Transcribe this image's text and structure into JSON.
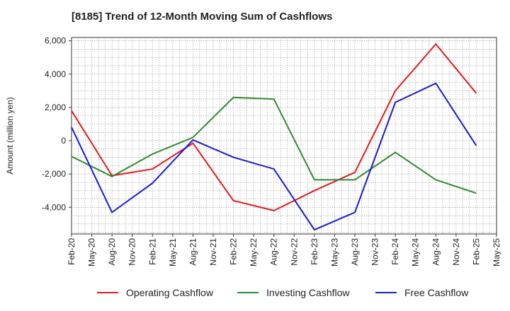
{
  "title": "[8185]  Trend of 12-Month Moving Sum of Cashflows",
  "chart_data": {
    "type": "line",
    "title": "[8185]  Trend of 12-Month Moving Sum of Cashflows",
    "xlabel": "",
    "ylabel": "Amount (million yen)",
    "x": [
      "Feb-20",
      "May-20",
      "Aug-20",
      "Nov-20",
      "Feb-21",
      "May-21",
      "Aug-21",
      "Nov-21",
      "Feb-22",
      "May-22",
      "Aug-22",
      "Nov-22",
      "Feb-23",
      "May-23",
      "Aug-23",
      "Nov-23",
      "Feb-24",
      "May-24",
      "Aug-24",
      "Nov-24",
      "Feb-25",
      "May-25"
    ],
    "ylim": [
      -5600,
      6200
    ],
    "yticks": [
      6000,
      4000,
      2000,
      0,
      -2000,
      -4000
    ],
    "ytick_labels": [
      "6,000",
      "4,000",
      "2,000",
      "0",
      "-2,000",
      "-4,000"
    ],
    "grid": true,
    "legend_position": "bottom",
    "series": [
      {
        "name": "Operating Cashflow",
        "color": "#e41a1a",
        "points": [
          [
            "Feb-20",
            1800
          ],
          [
            "Aug-20",
            -2100
          ],
          [
            "Feb-21",
            -1700
          ],
          [
            "Aug-21",
            -150
          ],
          [
            "Feb-22",
            -3600
          ],
          [
            "Aug-22",
            -4200
          ],
          [
            "Feb-23",
            -3000
          ],
          [
            "Aug-23",
            -1900
          ],
          [
            "Feb-24",
            3000
          ],
          [
            "Aug-24",
            5800
          ],
          [
            "Feb-25",
            2850
          ]
        ]
      },
      {
        "name": "Investing Cashflow",
        "color": "#2e8b2e",
        "points": [
          [
            "Feb-20",
            -950
          ],
          [
            "Aug-20",
            -2150
          ],
          [
            "Feb-21",
            -800
          ],
          [
            "Aug-21",
            200
          ],
          [
            "Feb-22",
            2600
          ],
          [
            "Aug-22",
            2500
          ],
          [
            "Feb-23",
            -2350
          ],
          [
            "Aug-23",
            -2350
          ],
          [
            "Feb-24",
            -700
          ],
          [
            "Aug-24",
            -2350
          ],
          [
            "Feb-25",
            -3150
          ]
        ]
      },
      {
        "name": "Free Cashflow",
        "color": "#1a1adc",
        "points": [
          [
            "Feb-20",
            800
          ],
          [
            "Aug-20",
            -4300
          ],
          [
            "Feb-21",
            -2550
          ],
          [
            "Aug-21",
            50
          ],
          [
            "Feb-22",
            -1000
          ],
          [
            "Aug-22",
            -1700
          ],
          [
            "Feb-23",
            -5350
          ],
          [
            "Aug-23",
            -4300
          ],
          [
            "Feb-24",
            2300
          ],
          [
            "Aug-24",
            3450
          ],
          [
            "Feb-25",
            -300
          ]
        ]
      }
    ]
  }
}
